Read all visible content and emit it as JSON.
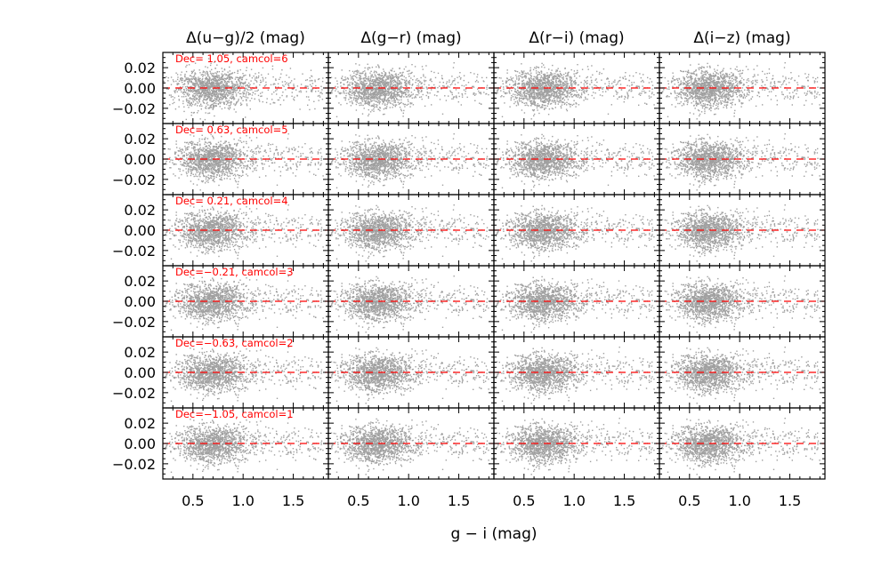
{
  "chart_data": {
    "type": "scatter",
    "xlabel": "g − i (mag)",
    "columns": [
      "Δ(u−g)/2 (mag)",
      "Δ(g−r) (mag)",
      "Δ(r−i) (mag)",
      "Δ(i−z) (mag)"
    ],
    "rows": [
      "Dec= 1.05, camcol=6",
      "Dec= 0.63, camcol=5",
      "Dec= 0.21, camcol=4",
      "Dec=−0.21, camcol=3",
      "Dec=−0.63, camcol=2",
      "Dec=−1.05, camcol=1"
    ],
    "xlim": [
      0.2,
      1.85
    ],
    "ylim": [
      -0.035,
      0.035
    ],
    "xticks": [
      0.5,
      1.0,
      1.5
    ],
    "xtick_labels": [
      "0.5",
      "1.0",
      "1.5"
    ],
    "yticks": [
      0.02,
      0.0,
      -0.02
    ],
    "ytick_labels": [
      "0.02",
      "0.00",
      "−0.02"
    ],
    "reference_line": {
      "y": 0.0,
      "style": "dashed",
      "color": "#ff0000"
    },
    "point_color": "#a0a0a0",
    "label_color": "#ff0000",
    "points_per_panel": 1500,
    "distribution": {
      "x_center": 0.68,
      "x_spread": 0.18,
      "y_center": 0.0,
      "y_spread": 0.009
    },
    "grid": false,
    "legend": "none"
  }
}
